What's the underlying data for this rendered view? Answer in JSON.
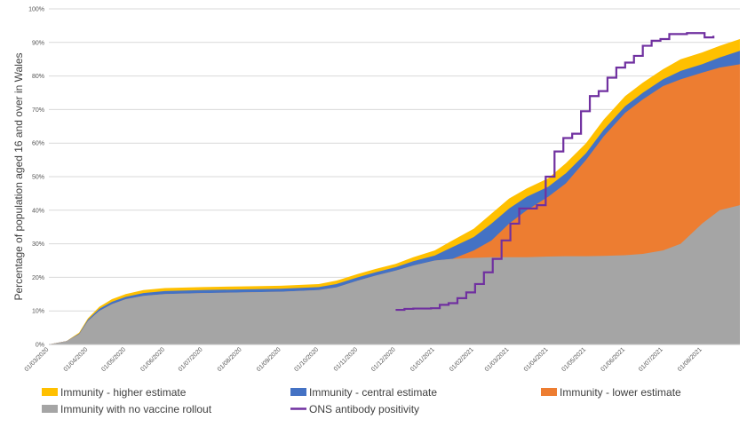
{
  "chart_data": {
    "type": "area",
    "title": "",
    "xlabel": "",
    "ylabel": "Percentage of population aged 16 and over in Wales",
    "ylim": [
      0,
      100
    ],
    "yticks": [
      "0%",
      "10%",
      "20%",
      "30%",
      "40%",
      "50%",
      "60%",
      "70%",
      "80%",
      "90%",
      "100%"
    ],
    "xlim": [
      "2020-03-01",
      "2021-08-31"
    ],
    "xticks": [
      {
        "date": "2020-03-01",
        "label": "01/03/2020"
      },
      {
        "date": "2020-04-01",
        "label": "01/04/2020"
      },
      {
        "date": "2020-05-01",
        "label": "01/05/2020"
      },
      {
        "date": "2020-06-01",
        "label": "01/06/2020"
      },
      {
        "date": "2020-07-01",
        "label": "01/07/2020"
      },
      {
        "date": "2020-08-01",
        "label": "01/08/2020"
      },
      {
        "date": "2020-09-01",
        "label": "01/09/2020"
      },
      {
        "date": "2020-10-01",
        "label": "01/10/2020"
      },
      {
        "date": "2020-11-01",
        "label": "01/11/2020"
      },
      {
        "date": "2020-12-01",
        "label": "01/12/2020"
      },
      {
        "date": "2021-01-01",
        "label": "01/01/2021"
      },
      {
        "date": "2021-02-01",
        "label": "01/02/2021"
      },
      {
        "date": "2021-03-01",
        "label": "01/03/2021"
      },
      {
        "date": "2021-04-01",
        "label": "01/04/2021"
      },
      {
        "date": "2021-05-01",
        "label": "01/05/2021"
      },
      {
        "date": "2021-06-01",
        "label": "01/06/2021"
      },
      {
        "date": "2021-07-01",
        "label": "01/07/2021"
      },
      {
        "date": "2021-08-01",
        "label": "01/08/2021"
      }
    ],
    "grid": true,
    "legend_position": "bottom",
    "x": [
      "2020-03-01",
      "2020-03-15",
      "2020-03-25",
      "2020-04-01",
      "2020-04-10",
      "2020-04-20",
      "2020-05-01",
      "2020-05-15",
      "2020-06-01",
      "2020-07-01",
      "2020-08-01",
      "2020-09-01",
      "2020-10-01",
      "2020-10-15",
      "2020-11-01",
      "2020-11-15",
      "2020-12-01",
      "2020-12-15",
      "2021-01-01",
      "2021-01-15",
      "2021-02-01",
      "2021-02-15",
      "2021-03-01",
      "2021-03-15",
      "2021-04-01",
      "2021-04-15",
      "2021-05-01",
      "2021-05-15",
      "2021-06-01",
      "2021-06-15",
      "2021-07-01",
      "2021-07-15",
      "2021-08-01",
      "2021-08-15",
      "2021-08-31"
    ],
    "series": [
      {
        "name": "Immunity with no vaccine rollout",
        "color": "#a5a5a5",
        "values": [
          0,
          1,
          3,
          7,
          10,
          12,
          13.5,
          14.5,
          15,
          15.3,
          15.5,
          15.7,
          16.2,
          17,
          19,
          20.5,
          22,
          23.5,
          25,
          25.5,
          25.8,
          26,
          26,
          26,
          26.2,
          26.3,
          26.3,
          26.4,
          26.6,
          27,
          28,
          30,
          36,
          40,
          41.5
        ]
      },
      {
        "name": "Immunity - lower estimate",
        "color": "#ed7d31",
        "values": [
          0,
          1,
          3,
          7,
          10,
          12,
          13.5,
          14.5,
          15,
          15.3,
          15.5,
          15.7,
          16.2,
          17,
          19,
          20.5,
          22,
          23.5,
          25,
          25.5,
          28,
          31,
          36,
          40,
          44,
          48,
          55,
          62,
          69,
          73,
          77,
          79,
          81,
          82.5,
          83.5
        ]
      },
      {
        "name": "Immunity - central estimate",
        "color": "#4472c4",
        "values": [
          0,
          1,
          3.2,
          7.4,
          10.6,
          12.7,
          14.2,
          15.3,
          15.9,
          16.2,
          16.4,
          16.6,
          17.1,
          18,
          20,
          21.5,
          23,
          24.8,
          26.5,
          29,
          32,
          36,
          40.5,
          44,
          47,
          51,
          57,
          64,
          71,
          75,
          79,
          81.5,
          83.5,
          85.5,
          87.5
        ]
      },
      {
        "name": "Immunity - higher estimate",
        "color": "#ffc000",
        "values": [
          0,
          1,
          3.5,
          7.8,
          11.2,
          13.5,
          15,
          16.2,
          16.8,
          17.1,
          17.3,
          17.5,
          18,
          19,
          21,
          22.5,
          24,
          26,
          28,
          31,
          34.5,
          39,
          43.5,
          46.5,
          49.5,
          54,
          60,
          67,
          74,
          78,
          82,
          85,
          87,
          89,
          91
        ]
      }
    ],
    "line_series": {
      "name": "ONS antibody positivity",
      "color": "#7030a0",
      "x": [
        "2020-12-01",
        "2020-12-08",
        "2020-12-15",
        "2020-12-22",
        "2020-12-29",
        "2021-01-05",
        "2021-01-12",
        "2021-01-19",
        "2021-01-26",
        "2021-02-02",
        "2021-02-09",
        "2021-02-16",
        "2021-02-23",
        "2021-03-02",
        "2021-03-09",
        "2021-03-16",
        "2021-03-23",
        "2021-03-30",
        "2021-04-06",
        "2021-04-13",
        "2021-04-20",
        "2021-04-27",
        "2021-05-04",
        "2021-05-11",
        "2021-05-18",
        "2021-05-25",
        "2021-06-01",
        "2021-06-08",
        "2021-06-15",
        "2021-06-22",
        "2021-06-29",
        "2021-07-06",
        "2021-07-13",
        "2021-07-20",
        "2021-07-27",
        "2021-08-03",
        "2021-08-10"
      ],
      "values": [
        10.3,
        10.6,
        10.7,
        10.7,
        10.8,
        11.8,
        12.3,
        13.8,
        15.5,
        18,
        21.5,
        25.5,
        31,
        36,
        40.5,
        40.5,
        41.5,
        50,
        57.5,
        61.5,
        62.8,
        69.5,
        74,
        75.5,
        79.5,
        82.5,
        84,
        86,
        89,
        90.5,
        91,
        92.5,
        92.5,
        92.8,
        92.8,
        91.5,
        92
      ]
    },
    "legend": [
      {
        "label": "Immunity - higher estimate",
        "color": "#ffc000",
        "kind": "box"
      },
      {
        "label": "Immunity - central estimate",
        "color": "#4472c4",
        "kind": "box"
      },
      {
        "label": "Immunity - lower estimate",
        "color": "#ed7d31",
        "kind": "box"
      },
      {
        "label": "Immunity with no vaccine rollout",
        "color": "#a5a5a5",
        "kind": "box"
      },
      {
        "label": "ONS antibody positivity",
        "color": "#7030a0",
        "kind": "line"
      }
    ]
  }
}
